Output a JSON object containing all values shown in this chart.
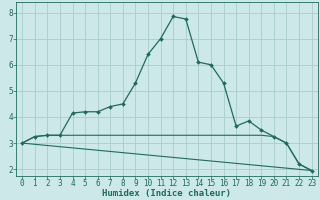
{
  "xlabel": "Humidex (Indice chaleur)",
  "bg_color": "#cce8e8",
  "grid_color": "#aacccc",
  "line_color": "#1e6b5e",
  "xlim": [
    -0.5,
    23.5
  ],
  "ylim": [
    1.75,
    8.4
  ],
  "xticks": [
    0,
    1,
    2,
    3,
    4,
    5,
    6,
    7,
    8,
    9,
    10,
    11,
    12,
    13,
    14,
    15,
    16,
    17,
    18,
    19,
    20,
    21,
    22,
    23
  ],
  "yticks": [
    2,
    3,
    4,
    5,
    6,
    7,
    8
  ],
  "line1_x": [
    0,
    1,
    2,
    3,
    4,
    5,
    6,
    7,
    8,
    9,
    10,
    11,
    12,
    13,
    14,
    15,
    16,
    17,
    18,
    19,
    20,
    21,
    22,
    23
  ],
  "line1_y": [
    3.0,
    3.25,
    3.3,
    3.3,
    4.15,
    4.2,
    4.2,
    4.4,
    4.5,
    5.3,
    6.4,
    7.0,
    7.85,
    7.75,
    6.1,
    6.0,
    5.3,
    3.65,
    3.85,
    3.5,
    3.25,
    3.0,
    2.2,
    1.95
  ],
  "line2_x": [
    0,
    1,
    2,
    3,
    4,
    5,
    6,
    7,
    8,
    9,
    10,
    11,
    12,
    13,
    14,
    15,
    16,
    17,
    18,
    19,
    20,
    21,
    22,
    23
  ],
  "line2_y": [
    3.0,
    3.25,
    3.3,
    3.3,
    3.3,
    3.3,
    3.3,
    3.3,
    3.3,
    3.3,
    3.3,
    3.3,
    3.3,
    3.3,
    3.3,
    3.3,
    3.3,
    3.3,
    3.3,
    3.3,
    3.25,
    3.0,
    2.2,
    1.95
  ],
  "line3_x": [
    0,
    23
  ],
  "line3_y": [
    3.0,
    1.95
  ],
  "tick_fontsize": 5.5,
  "xlabel_fontsize": 6.5
}
